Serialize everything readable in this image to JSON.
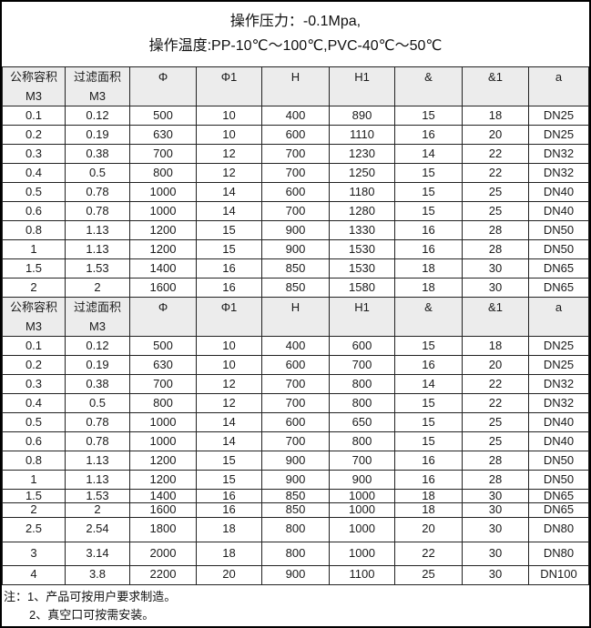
{
  "info": {
    "line1": "操作压力：-0.1Mpa,",
    "line2": "操作温度:PP-10℃～100℃,PVC-40℃～50℃"
  },
  "table": {
    "columns": [
      {
        "label": "公称容积",
        "sub": "M3"
      },
      {
        "label": "过滤面积",
        "sub": "M3"
      },
      {
        "label": "Φ",
        "sub": ""
      },
      {
        "label": "Φ1",
        "sub": ""
      },
      {
        "label": "H",
        "sub": ""
      },
      {
        "label": "H1",
        "sub": ""
      },
      {
        "label": "&",
        "sub": ""
      },
      {
        "label": "&1",
        "sub": ""
      },
      {
        "label": "a",
        "sub": ""
      }
    ],
    "section1_rows": [
      [
        "0.1",
        "0.12",
        "500",
        "10",
        "400",
        "890",
        "15",
        "18",
        "DN25"
      ],
      [
        "0.2",
        "0.19",
        "630",
        "10",
        "600",
        "1110",
        "16",
        "20",
        "DN25"
      ],
      [
        "0.3",
        "0.38",
        "700",
        "12",
        "700",
        "1230",
        "14",
        "22",
        "DN32"
      ],
      [
        "0.4",
        "0.5",
        "800",
        "12",
        "700",
        "1250",
        "15",
        "22",
        "DN32"
      ],
      [
        "0.5",
        "0.78",
        "1000",
        "14",
        "600",
        "1180",
        "15",
        "25",
        "DN40"
      ],
      [
        "0.6",
        "0.78",
        "1000",
        "14",
        "700",
        "1280",
        "15",
        "25",
        "DN40"
      ],
      [
        "0.8",
        "1.13",
        "1200",
        "15",
        "900",
        "1330",
        "16",
        "28",
        "DN50"
      ],
      [
        "1",
        "1.13",
        "1200",
        "15",
        "900",
        "1530",
        "16",
        "28",
        "DN50"
      ],
      [
        "1.5",
        "1.53",
        "1400",
        "16",
        "850",
        "1530",
        "18",
        "30",
        "DN65"
      ],
      [
        "2",
        "2",
        "1600",
        "16",
        "850",
        "1580",
        "18",
        "30",
        "DN65"
      ]
    ],
    "section2_rows": [
      [
        "0.1",
        "0.12",
        "500",
        "10",
        "400",
        "600",
        "15",
        "18",
        "DN25"
      ],
      [
        "0.2",
        "0.19",
        "630",
        "10",
        "600",
        "700",
        "16",
        "20",
        "DN25"
      ],
      [
        "0.3",
        "0.38",
        "700",
        "12",
        "700",
        "800",
        "14",
        "22",
        "DN32"
      ],
      [
        "0.4",
        "0.5",
        "800",
        "12",
        "700",
        "800",
        "15",
        "22",
        "DN32"
      ],
      [
        "0.5",
        "0.78",
        "1000",
        "14",
        "600",
        "650",
        "15",
        "25",
        "DN40"
      ],
      [
        "0.6",
        "0.78",
        "1000",
        "14",
        "700",
        "800",
        "15",
        "25",
        "DN40"
      ],
      [
        "0.8",
        "1.13",
        "1200",
        "15",
        "900",
        "700",
        "16",
        "28",
        "DN50"
      ],
      [
        "1",
        "1.13",
        "1200",
        "15",
        "900",
        "900",
        "16",
        "28",
        "DN50"
      ],
      [
        "1.5",
        "1.53",
        "1400",
        "16",
        "850",
        "1000",
        "18",
        "30",
        "DN65"
      ],
      [
        "2",
        "2",
        "1600",
        "16",
        "850",
        "1000",
        "18",
        "30",
        "DN65"
      ],
      [
        "2.5",
        "2.54",
        "1800",
        "18",
        "800",
        "1000",
        "20",
        "30",
        "DN80"
      ],
      [
        "3",
        "3.14",
        "2000",
        "18",
        "800",
        "1000",
        "22",
        "30",
        "DN80"
      ],
      [
        "4",
        "3.8",
        "2200",
        "20",
        "900",
        "1100",
        "25",
        "30",
        "DN100"
      ]
    ]
  },
  "notes": {
    "line1": "注：1、产品可按用户要求制造。",
    "line2": "2、真空口可按需安装。"
  },
  "colors": {
    "header_bg": "#ececec",
    "grid": "#222222"
  }
}
